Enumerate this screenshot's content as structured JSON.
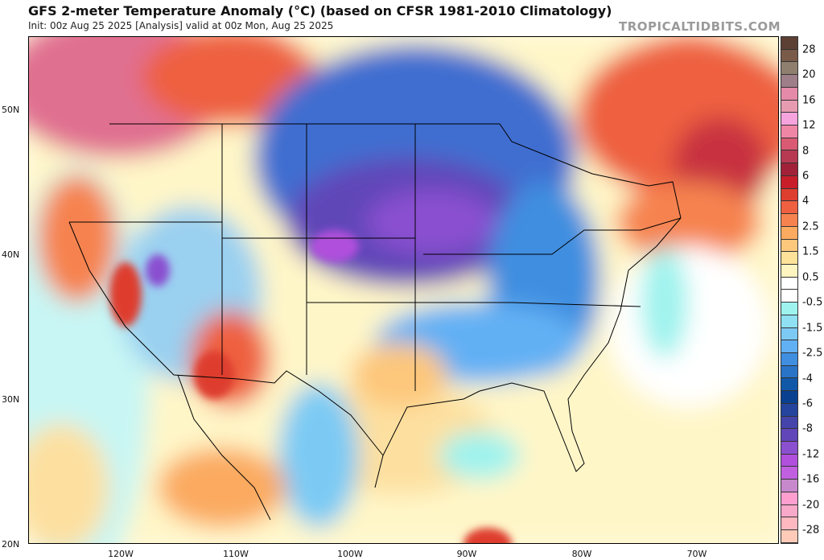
{
  "header": {
    "title": "GFS 2-meter Temperature Anomaly (°C) (based on CFSR 1981-2010 Climatology)",
    "subtitle": "Init: 00z Aug 25 2025   [Analysis]   valid at 00z Mon, Aug 25 2025",
    "brand": "TROPICALTIDBITS.COM"
  },
  "map": {
    "lat_labels": [
      "50N",
      "40N",
      "30N",
      "20N"
    ],
    "lon_labels": [
      "120W",
      "110W",
      "100W",
      "90W",
      "80W",
      "70W"
    ]
  },
  "colorbar": {
    "labels": [
      "28",
      "20",
      "16",
      "12",
      "8",
      "6",
      "4",
      "2.5",
      "1.5",
      "0.5",
      "-0.5",
      "-1.5",
      "-2.5",
      "-4",
      "-6",
      "-8",
      "-12",
      "-16",
      "-20",
      "-28"
    ],
    "colors": [
      "#5c4033",
      "#7a5a48",
      "#8f7f6e",
      "#9e7e88",
      "#e58aa9",
      "#e79bb0",
      "#f7a3dd",
      "#ef86a6",
      "#d95a72",
      "#b83a52",
      "#a12238",
      "#c81e2a",
      "#de3e2e",
      "#ee6040",
      "#f6834f",
      "#fbaa60",
      "#fdc77c",
      "#fee29a",
      "#fff5c0",
      "#ffffff",
      "#ffffff",
      "#9ff3ee",
      "#8ee0f2",
      "#7ccaf4",
      "#62b0f4",
      "#3f8ee0",
      "#2a74c8",
      "#1258a8",
      "#0a4090",
      "#25449e",
      "#4444aa",
      "#6046b8",
      "#8a50d0",
      "#b050dc",
      "#c060e0",
      "#c888cc",
      "#ff9fd0",
      "#f8a8c8",
      "#ffb8c0",
      "#ffcbb8"
    ]
  }
}
